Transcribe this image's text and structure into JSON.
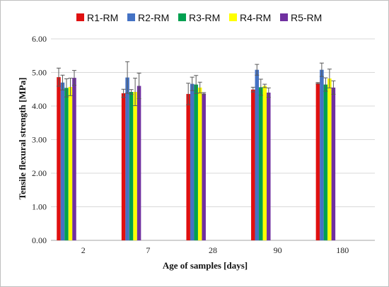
{
  "chart_data": {
    "type": "bar",
    "categories": [
      "2",
      "7",
      "28",
      "90",
      "180"
    ],
    "xlabel": "Age of samples [days]",
    "ylabel": "Tensile flexural strength [MPa]",
    "ylim": [
      0,
      6
    ],
    "yticks": [
      "0.00",
      "1.00",
      "2.00",
      "3.00",
      "4.00",
      "5.00",
      "6.00"
    ],
    "legend_position": "top",
    "grid": true,
    "series": [
      {
        "name": "R1-RM",
        "color": "#e01010",
        "values": [
          4.86,
          4.38,
          4.36,
          4.49,
          4.68
        ],
        "errors": [
          0.27,
          0.12,
          0.32,
          0.07,
          0.02
        ]
      },
      {
        "name": "R2-RM",
        "color": "#4472c4",
        "values": [
          4.7,
          4.85,
          4.66,
          5.08,
          5.08
        ],
        "errors": [
          0.22,
          0.47,
          0.2,
          0.16,
          0.2
        ]
      },
      {
        "name": "R3-RM",
        "color": "#00a050",
        "values": [
          4.54,
          4.42,
          4.64,
          4.56,
          4.64
        ],
        "errors": [
          0.27,
          0.07,
          0.27,
          0.24,
          0.2
        ]
      },
      {
        "name": "R4-RM",
        "color": "#ffff00",
        "values": [
          4.57,
          4.42,
          4.55,
          4.6,
          4.82
        ],
        "errors": [
          0.26,
          0.41,
          0.16,
          0.05,
          0.28
        ]
      },
      {
        "name": "R5-RM",
        "color": "#7030a0",
        "values": [
          4.84,
          4.6,
          4.37,
          4.4,
          4.55
        ],
        "errors": [
          0.22,
          0.38,
          0.03,
          0.14,
          0.2
        ]
      }
    ]
  }
}
